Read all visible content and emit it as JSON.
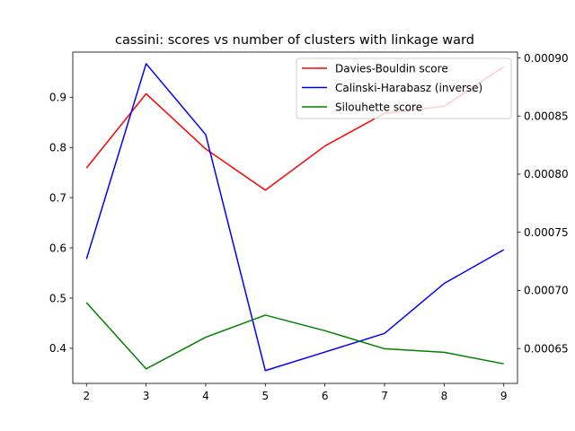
{
  "chart_data": {
    "type": "line",
    "title": "cassini: scores vs number of clusters with linkage ward",
    "xlabel": "",
    "ylabel": "",
    "x": [
      2,
      3,
      4,
      5,
      6,
      7,
      8,
      9
    ],
    "xlim": [
      1.77,
      9.23
    ],
    "xticks": [
      "2",
      "3",
      "4",
      "5",
      "6",
      "7",
      "8",
      "9"
    ],
    "left_axis": {
      "ylim": [
        0.33,
        0.99
      ],
      "ticks": [
        "0.4",
        "0.5",
        "0.6",
        "0.7",
        "0.8",
        "0.9"
      ],
      "tick_values": [
        0.4,
        0.5,
        0.6,
        0.7,
        0.8,
        0.9
      ]
    },
    "right_axis": {
      "ylim": [
        0.00062,
        0.000905
      ],
      "ticks": [
        "0.00065",
        "0.00070",
        "0.00075",
        "0.00080",
        "0.00085",
        "0.00090"
      ],
      "tick_values": [
        0.00065,
        0.0007,
        0.00075,
        0.0008,
        0.00085,
        0.0009
      ]
    },
    "series": [
      {
        "name": "Davies-Bouldin score",
        "color": "#ff0000",
        "axis": "left",
        "values": [
          0.759,
          0.907,
          0.797,
          0.715,
          0.803,
          0.868,
          0.882,
          0.961
        ]
      },
      {
        "name": "Calinski-Harabasz (inverse)",
        "color": "#0000ff",
        "axis": "right",
        "values": [
          0.000727,
          0.000895,
          0.000834,
          0.000631,
          0.000647,
          0.000663,
          0.000706,
          0.000735
        ]
      },
      {
        "name": "Silouhette score",
        "color": "#008000",
        "axis": "left",
        "values": [
          0.491,
          0.359,
          0.422,
          0.466,
          0.435,
          0.399,
          0.392,
          0.369
        ]
      }
    ],
    "legend_position": "top-right",
    "grid": false
  }
}
